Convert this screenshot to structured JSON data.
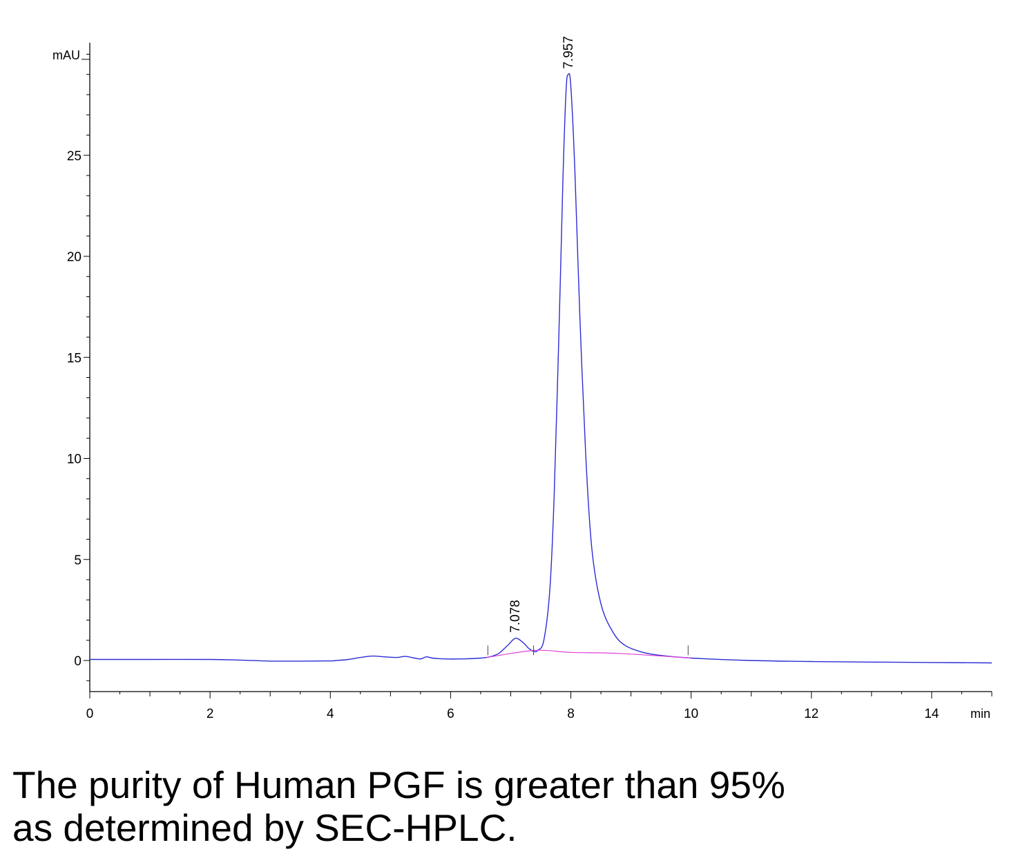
{
  "chart_data": {
    "type": "line",
    "xlabel": "min",
    "ylabel": "mAU",
    "xlim": [
      0,
      15
    ],
    "ylim": [
      -1.6,
      30.5
    ],
    "x_ticks": [
      0,
      2,
      4,
      6,
      8,
      10,
      12,
      14
    ],
    "y_ticks": [
      0,
      5,
      10,
      15,
      20,
      25
    ],
    "colors": {
      "signal": "#2b2bd4",
      "baseline": "#e040d8",
      "axis": "#000000"
    },
    "series": [
      {
        "color": "#2b2bd4",
        "points": [
          [
            0,
            0.05
          ],
          [
            1.0,
            0.05
          ],
          [
            2.0,
            0.05
          ],
          [
            2.5,
            0.02
          ],
          [
            3.0,
            -0.03
          ],
          [
            3.5,
            -0.03
          ],
          [
            4.0,
            -0.02
          ],
          [
            4.1,
            0.0
          ],
          [
            4.3,
            0.05
          ],
          [
            4.5,
            0.15
          ],
          [
            4.7,
            0.22
          ],
          [
            4.9,
            0.18
          ],
          [
            5.1,
            0.15
          ],
          [
            5.25,
            0.2
          ],
          [
            5.4,
            0.12
          ],
          [
            5.5,
            0.08
          ],
          [
            5.6,
            0.18
          ],
          [
            5.7,
            0.12
          ],
          [
            5.9,
            0.08
          ],
          [
            6.2,
            0.08
          ],
          [
            6.5,
            0.12
          ],
          [
            6.65,
            0.18
          ],
          [
            6.8,
            0.35
          ],
          [
            6.95,
            0.75
          ],
          [
            7.078,
            1.1
          ],
          [
            7.2,
            0.9
          ],
          [
            7.3,
            0.6
          ],
          [
            7.38,
            0.45
          ],
          [
            7.45,
            0.5
          ],
          [
            7.55,
            1.0
          ],
          [
            7.65,
            3.5
          ],
          [
            7.72,
            8.0
          ],
          [
            7.8,
            16.0
          ],
          [
            7.87,
            24.0
          ],
          [
            7.92,
            28.2
          ],
          [
            7.957,
            29.0
          ],
          [
            8.0,
            28.4
          ],
          [
            8.07,
            24.0
          ],
          [
            8.15,
            17.0
          ],
          [
            8.25,
            10.0
          ],
          [
            8.35,
            5.5
          ],
          [
            8.5,
            2.8
          ],
          [
            8.7,
            1.4
          ],
          [
            8.9,
            0.75
          ],
          [
            9.2,
            0.4
          ],
          [
            9.5,
            0.25
          ],
          [
            10.0,
            0.12
          ],
          [
            11.0,
            0.0
          ],
          [
            12.0,
            -0.05
          ],
          [
            13.0,
            -0.08
          ],
          [
            14.0,
            -0.1
          ],
          [
            15.0,
            -0.12
          ]
        ]
      },
      {
        "color": "#e040d8",
        "points": [
          [
            6.6,
            0.15
          ],
          [
            7.4,
            0.5
          ],
          [
            8.0,
            0.4
          ],
          [
            8.8,
            0.35
          ],
          [
            10.0,
            0.12
          ]
        ]
      }
    ],
    "annotations": [
      {
        "text": "7.078",
        "x": 7.078,
        "y": 1.1
      },
      {
        "text": "7.957",
        "x": 7.957,
        "y": 29.0
      }
    ]
  },
  "caption": {
    "line1": "The purity of Human PGF is greater than 95%",
    "line2": "as determined by SEC-HPLC."
  }
}
